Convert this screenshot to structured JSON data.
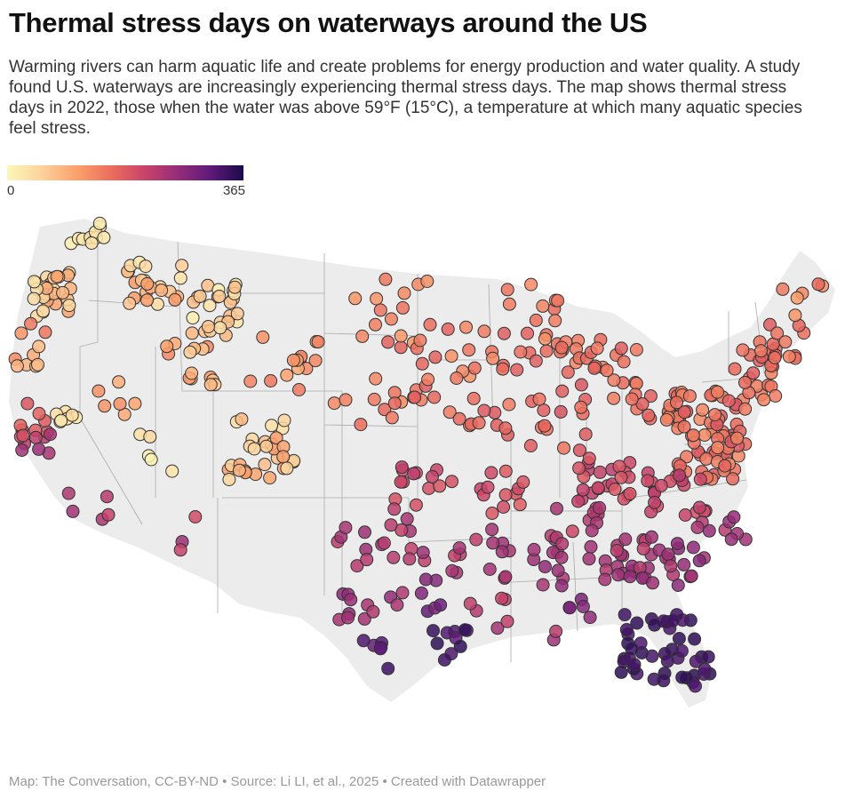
{
  "title": "Thermal stress days on waterways around the US",
  "subtitle": "Warming rivers can harm aquatic life and create problems for energy production and water quality. A study found U.S. waterways are increasingly experiencing thermal stress days. The map shows thermal stress days in 2022, those when the water was above 59°F (15°C), a temperature at which many aquatic species feel stress.",
  "legend": {
    "min": "0",
    "max": "365",
    "colors": [
      "#fcf7b8",
      "#fdd49e",
      "#fb9f6a",
      "#ea6a5d",
      "#c94469",
      "#952d78",
      "#5f1a7a",
      "#1a0a4a"
    ]
  },
  "map": {
    "region": "Contiguous United States",
    "land_color": "#ececec",
    "border_color": "#999999",
    "marker_outline": "#333333"
  },
  "footer": "Map: The Conversation, CC-BY-ND • Source: Li LI, et al., 2025 • Created with Datawrapper"
}
